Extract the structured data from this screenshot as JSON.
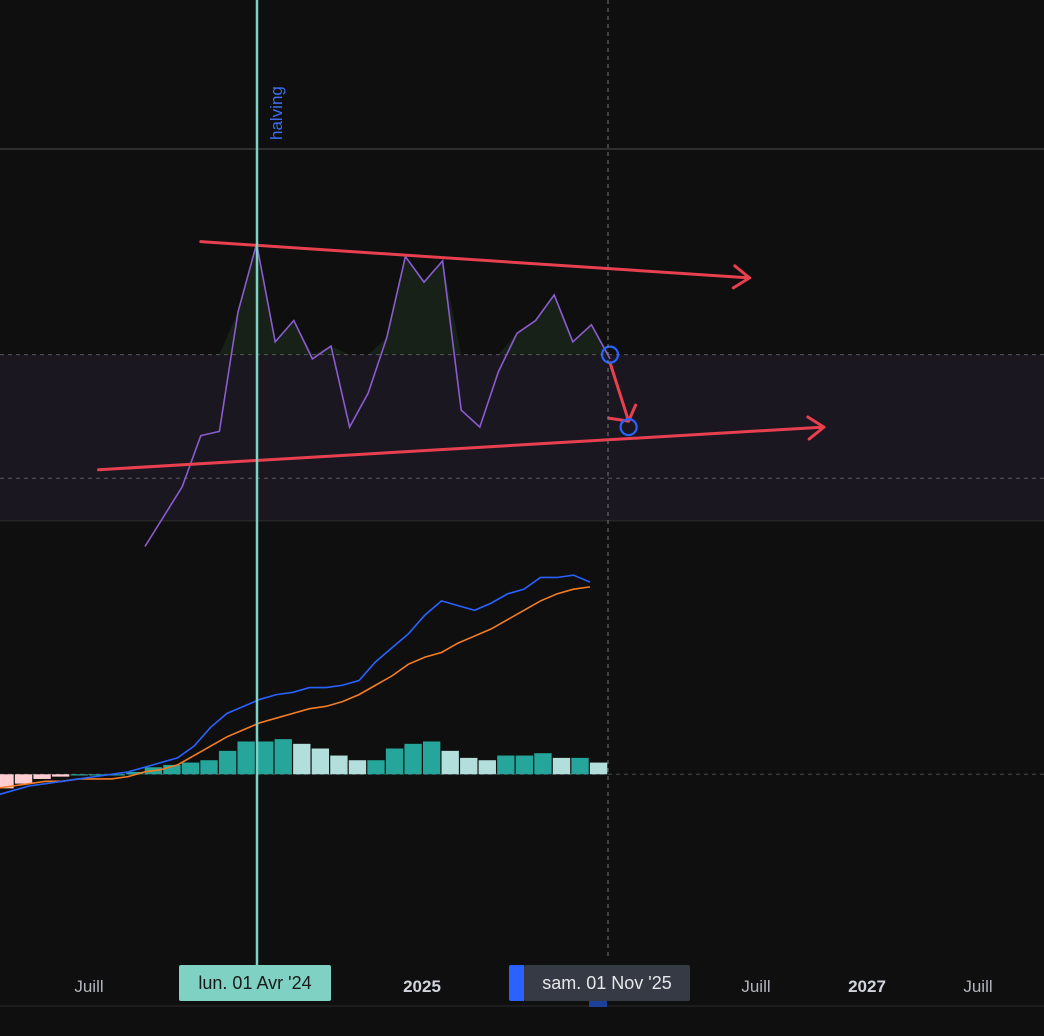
{
  "x_axis": {
    "labels": [
      {
        "text": "Juill",
        "major": false
      },
      {
        "text": "2025",
        "major": true
      },
      {
        "text": "Juill",
        "major": false
      },
      {
        "text": "2027",
        "major": true
      },
      {
        "text": "Juill",
        "major": false
      }
    ]
  },
  "vertical_line": {
    "label": "halving",
    "tag": "lun. 01 Avr '24",
    "color": "#7fd1c3"
  },
  "cursor": {
    "tag": "sam. 01 Nov '25"
  },
  "colors": {
    "background": "#0f0f0f",
    "oscillator": "#8a5cd0",
    "trendline": "#e8404f",
    "band_fill": "#1a1721",
    "macd_line": "#2962ff",
    "signal_line": "#f57c24",
    "hist_up_strong": "#26a69a",
    "hist_up_weak": "#b2dfdb",
    "hist_down": "#ffcdd2",
    "marker": "#2962ff"
  },
  "chart_data": [
    {
      "type": "line",
      "name": "oscillator panel",
      "series": [
        {
          "values": [
            2,
            9,
            16,
            28,
            29,
            57,
            73,
            50,
            55,
            46,
            49,
            30,
            38,
            51,
            70,
            64,
            69,
            34,
            30,
            43,
            52,
            55,
            61,
            50,
            54,
            46
          ]
        }
      ],
      "band": [
        18,
        47
      ],
      "ylim": [
        0,
        95
      ],
      "trendlines": [
        {
          "from": [
            -2.5,
            20
          ],
          "to": [
            36.5,
            30
          ]
        },
        {
          "from": [
            3,
            73.5
          ],
          "to": [
            32.5,
            65
          ]
        }
      ],
      "markers": [
        [
          25,
          47
        ],
        [
          26,
          30
        ]
      ]
    },
    {
      "type": "bar",
      "name": "MACD panel",
      "histogram": [
        -6,
        -4,
        -2,
        -1,
        0,
        0,
        0,
        1,
        3,
        4,
        5,
        6,
        10,
        14,
        14,
        15,
        13,
        11,
        8,
        6,
        6,
        11,
        13,
        14,
        10,
        7,
        6,
        8,
        8,
        9,
        7,
        7,
        5
      ],
      "macd": [
        -9,
        -7,
        -5,
        -4,
        -3,
        -2,
        -1,
        0,
        1,
        3,
        5,
        7,
        12,
        20,
        26,
        29,
        32,
        34,
        35,
        37,
        37,
        38,
        40,
        48,
        54,
        60,
        68,
        74,
        72,
        70,
        73,
        77,
        79,
        84,
        84,
        85,
        82
      ],
      "signal": [
        -6,
        -5,
        -4,
        -3,
        -3,
        -2,
        -2,
        -2,
        -1,
        1,
        2,
        4,
        8,
        12,
        16,
        19,
        22,
        24,
        26,
        28,
        29,
        31,
        34,
        38,
        42,
        47,
        50,
        52,
        56,
        59,
        62,
        66,
        70,
        74,
        77,
        79,
        80
      ],
      "ylim": [
        -40,
        100
      ]
    }
  ]
}
